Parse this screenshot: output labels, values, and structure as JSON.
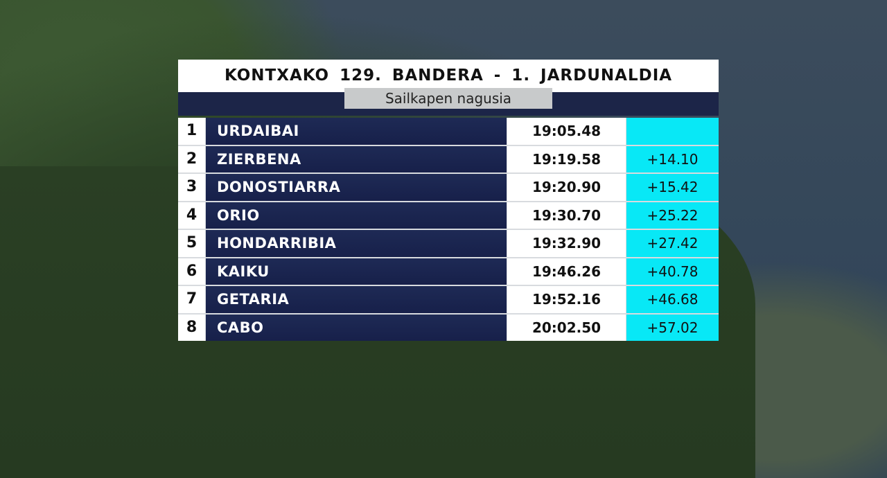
{
  "title": "KONTXAKO 129. BANDERA - 1. JARDUNALDIA",
  "subtitle": "Sailkapen nagusia",
  "colors": {
    "header_band": "#1c2548",
    "name_cell": "#1e2a55",
    "gap_cell": "#08e8f6"
  },
  "rows": [
    {
      "pos": "1",
      "team": "URDAIBAI",
      "time": "19:05.48",
      "gap": ""
    },
    {
      "pos": "2",
      "team": "ZIERBENA",
      "time": "19:19.58",
      "gap": "+14.10"
    },
    {
      "pos": "3",
      "team": "DONOSTIARRA",
      "time": "19:20.90",
      "gap": "+15.42"
    },
    {
      "pos": "4",
      "team": "ORIO",
      "time": "19:30.70",
      "gap": "+25.22"
    },
    {
      "pos": "5",
      "team": "HONDARRIBIA",
      "time": "19:32.90",
      "gap": "+27.42"
    },
    {
      "pos": "6",
      "team": "KAIKU",
      "time": "19:46.26",
      "gap": "+40.78"
    },
    {
      "pos": "7",
      "team": "GETARIA",
      "time": "19:52.16",
      "gap": "+46.68"
    },
    {
      "pos": "8",
      "team": "CABO",
      "time": "20:02.50",
      "gap": "+57.02"
    }
  ]
}
